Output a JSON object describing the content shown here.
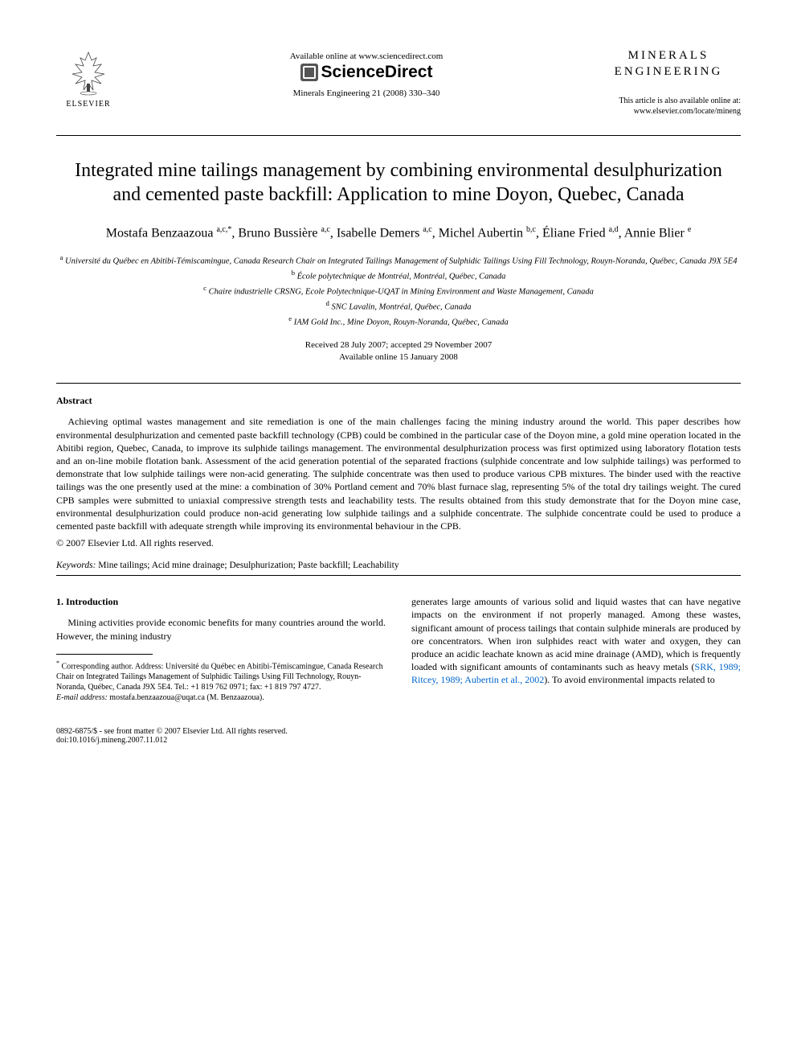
{
  "header": {
    "publisher": "ELSEVIER",
    "available_online": "Available online at www.sciencedirect.com",
    "sciencedirect": "ScienceDirect",
    "journal_ref": "Minerals Engineering 21 (2008) 330–340",
    "journal_name_line1": "MINERALS",
    "journal_name_line2": "ENGINEERING",
    "also_available_line1": "This article is also available online at:",
    "also_available_line2": "www.elsevier.com/locate/mineng"
  },
  "title": "Integrated mine tailings management by combining environmental desulphurization and cemented paste backfill: Application to mine Doyon, Quebec, Canada",
  "authors_html": "Mostafa Benzaazoua <sup>a,c,*</sup>, Bruno Bussière <sup>a,c</sup>, Isabelle Demers <sup>a,c</sup>, Michel Aubertin <sup>b,c</sup>, Éliane Fried <sup>a,d</sup>, Annie Blier <sup>e</sup>",
  "affiliations": {
    "a": "Université du Québec en Abitibi-Témiscamingue, Canada Research Chair on Integrated Tailings Management of Sulphidic Tailings Using Fill Technology, Rouyn-Noranda, Québec, Canada J9X 5E4",
    "b": "École polytechnique de Montréal, Montréal, Québec, Canada",
    "c": "Chaire industrielle CRSNG, Ecole Polytechnique-UQAT in Mining Environment and Waste Management, Canada",
    "d": "SNC Lavalin, Montréal, Québec, Canada",
    "e": "IAM Gold Inc., Mine Doyon, Rouyn-Noranda, Québec, Canada"
  },
  "dates": {
    "received": "Received 28 July 2007; accepted 29 November 2007",
    "online": "Available online 15 January 2008"
  },
  "abstract": {
    "heading": "Abstract",
    "text": "Achieving optimal wastes management and site remediation is one of the main challenges facing the mining industry around the world. This paper describes how environmental desulphurization and cemented paste backfill technology (CPB) could be combined in the particular case of the Doyon mine, a gold mine operation located in the Abitibi region, Quebec, Canada, to improve its sulphide tailings management. The environmental desulphurization process was first optimized using laboratory flotation tests and an on-line mobile flotation bank. Assessment of the acid generation potential of the separated fractions (sulphide concentrate and low sulphide tailings) was performed to demonstrate that low sulphide tailings were non-acid generating. The sulphide concentrate was then used to produce various CPB mixtures. The binder used with the reactive tailings was the one presently used at the mine: a combination of 30% Portland cement and 70% blast furnace slag, representing 5% of the total dry tailings weight. The cured CPB samples were submitted to uniaxial compressive strength tests and leachability tests. The results obtained from this study demonstrate that for the Doyon mine case, environmental desulphurization could produce non-acid generating low sulphide tailings and a sulphide concentrate. The sulphide concentrate could be used to produce a cemented paste backfill with adequate strength while improving its environmental behaviour in the CPB.",
    "copyright": "© 2007 Elsevier Ltd. All rights reserved."
  },
  "keywords": {
    "label": "Keywords:",
    "text": "Mine tailings; Acid mine drainage; Desulphurization; Paste backfill; Leachability"
  },
  "introduction": {
    "heading": "1. Introduction",
    "left_text": "Mining activities provide economic benefits for many countries around the world. However, the mining industry",
    "right_text_before_ref": "generates large amounts of various solid and liquid wastes that can have negative impacts on the environment if not properly managed. Among these wastes, significant amount of process tailings that contain sulphide minerals are produced by ore concentrators. When iron sulphides react with water and oxygen, they can produce an acidic leachate known as acid mine drainage (AMD), which is frequently loaded with significant amounts of contaminants such as heavy metals (",
    "refs": "SRK, 1989; Ritcey, 1989; Aubertin et al., 2002",
    "right_text_after_ref": "). To avoid environmental impacts related to"
  },
  "footnote": {
    "corresponding": "Corresponding author. Address: Université du Québec en Abitibi-Témiscamingue, Canada Research Chair on Integrated Tailings Management of Sulphidic Tailings Using Fill Technology, Rouyn-Noranda, Québec, Canada J9X 5E4. Tel.: +1 819 762 0971; fax: +1 819 797 4727.",
    "email_label": "E-mail address:",
    "email": "mostafa.benzaazoua@uqat.ca",
    "email_suffix": "(M. Benzaazoua)."
  },
  "footer": {
    "left_line1": "0892-6875/$ - see front matter © 2007 Elsevier Ltd. All rights reserved.",
    "left_line2": "doi:10.1016/j.mineng.2007.11.012"
  }
}
